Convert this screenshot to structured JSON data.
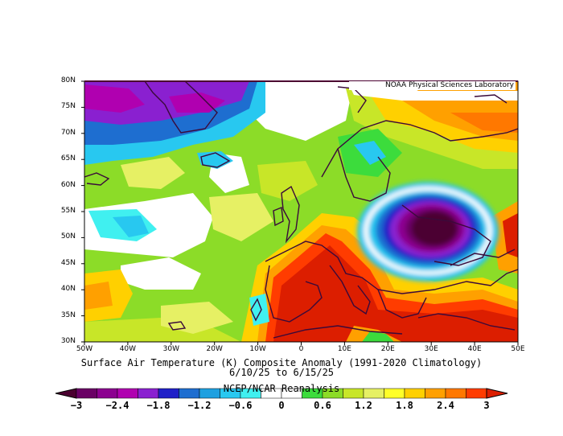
{
  "map": {
    "title": "Surface Air Temperature (K) Composite Anomaly (1991-2020 Climatology)",
    "date_range": "6/10/25  to 6/15/25",
    "source": "NCEP/NCAR Reanalysis",
    "credit": "NOAA Physical Sciences Laboratory",
    "extent": {
      "lon": [
        -50,
        50
      ],
      "lat": [
        30,
        80
      ]
    },
    "lat_ticks": [
      "80N",
      "75N",
      "70N",
      "65N",
      "60N",
      "55N",
      "50N",
      "45N",
      "40N",
      "35N",
      "30N"
    ],
    "lon_ticks": [
      "50W",
      "40W",
      "30W",
      "20W",
      "10W",
      "0",
      "10E",
      "20E",
      "30E",
      "40E",
      "50E"
    ],
    "colorbar": {
      "labels": [
        "-3",
        "-2.4",
        "-1.8",
        "-1.2",
        "-0.6",
        "0",
        "0.6",
        "1.2",
        "1.8",
        "2.4",
        "3"
      ],
      "colors": [
        "#4b0030",
        "#6a0065",
        "#8c0090",
        "#b000b0",
        "#8a20d0",
        "#2020c8",
        "#1e6ed0",
        "#1ea0e0",
        "#28c8f0",
        "#40f0f0",
        "#ffffff",
        "#ffffff",
        "#3cdc3c",
        "#8cdc28",
        "#c8e628",
        "#e6f064",
        "#ffff28",
        "#ffd000",
        "#ffa000",
        "#ff7800",
        "#ff3c00",
        "#dc1e00"
      ]
    }
  }
}
